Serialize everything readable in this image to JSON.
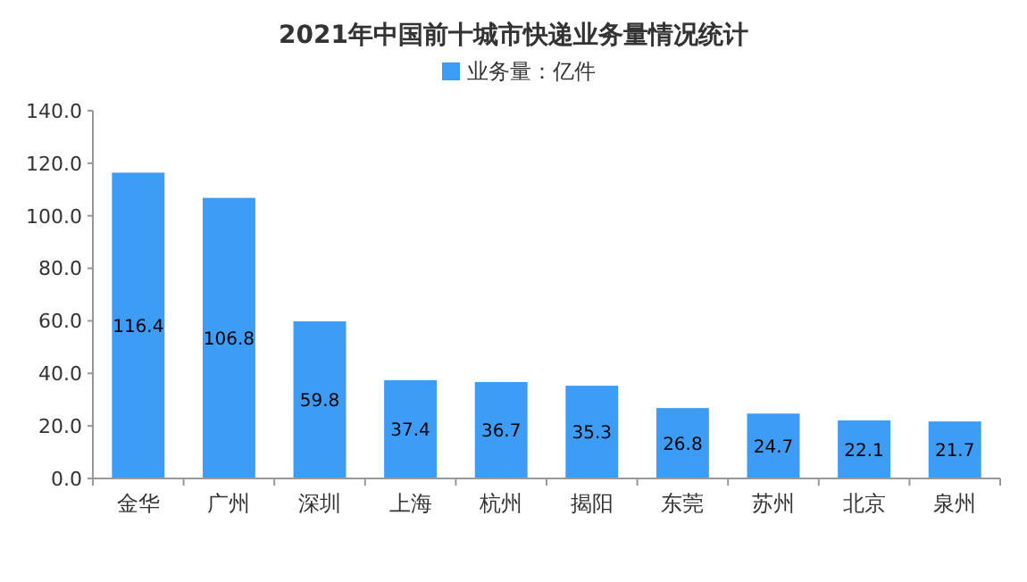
{
  "chart_data": {
    "type": "bar",
    "title": "2021年中国前十城市快递业务量情况统计",
    "categories": [
      "金华",
      "广州",
      "深圳",
      "上海",
      "杭州",
      "揭阳",
      "东莞",
      "苏州",
      "北京",
      "泉州"
    ],
    "series": [
      {
        "name": "业务量：亿件",
        "color": "#3d9cf5",
        "values": [
          116.4,
          106.8,
          59.8,
          37.4,
          36.7,
          35.3,
          26.8,
          24.7,
          22.1,
          21.7
        ]
      }
    ],
    "ylim": [
      0,
      140
    ],
    "yticks": [
      {
        "value": 0,
        "label": "0.0"
      },
      {
        "value": 20,
        "label": "20.0"
      },
      {
        "value": 40,
        "label": "40.0"
      },
      {
        "value": 60,
        "label": "60.0"
      },
      {
        "value": 80,
        "label": "80.0"
      },
      {
        "value": 100,
        "label": "100.0"
      },
      {
        "value": 120,
        "label": "120.0"
      },
      {
        "value": 140,
        "label": "140.0"
      }
    ],
    "data_labels": true,
    "legend": "top"
  }
}
